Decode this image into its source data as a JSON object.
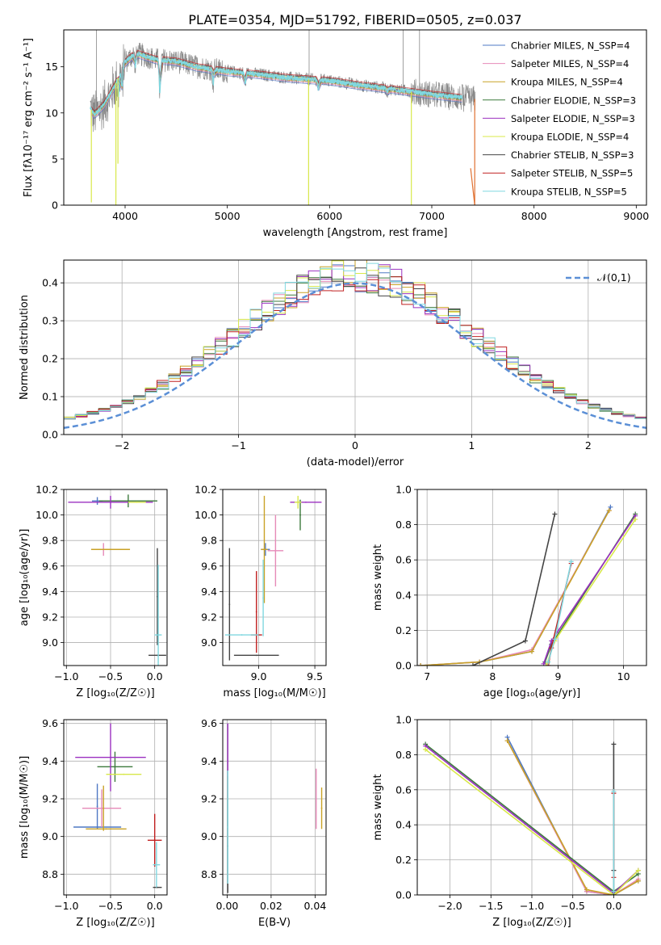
{
  "figure_title": "PLATE=0354, MJD=51792, FIBERID=0505, z=0.037",
  "models": [
    {
      "name": "Chabrier MILES, N_SSP=4",
      "color": "#4f78c4"
    },
    {
      "name": "Salpeter MILES, N_SSP=4",
      "color": "#e68ab8"
    },
    {
      "name": "Kroupa MILES, N_SSP=4",
      "color": "#c9a227"
    },
    {
      "name": "Chabrier ELODIE, N_SSP=3",
      "color": "#3d7a3d"
    },
    {
      "name": "Salpeter ELODIE, N_SSP=3",
      "color": "#9b30c0"
    },
    {
      "name": "Kroupa ELODIE, N_SSP=4",
      "color": "#d8e84a"
    },
    {
      "name": "Chabrier STELIB, N_SSP=3",
      "color": "#444444"
    },
    {
      "name": "Salpeter STELIB, N_SSP=5",
      "color": "#c02020"
    },
    {
      "name": "Kroupa STELIB, N_SSP=5",
      "color": "#80d8e0"
    }
  ],
  "chart_data": [
    {
      "id": "spectrum",
      "type": "line",
      "xlabel": "wavelength [Angstrom, rest frame]",
      "ylabel": "Flux [fλ10⁻¹⁷ erg cm⁻² s⁻¹ A⁻¹]",
      "xlim": [
        3400,
        9100
      ],
      "ylim": [
        0,
        19
      ],
      "xticks": [
        "4000",
        "5000",
        "6000",
        "7000",
        "8000",
        "9000"
      ],
      "yticks": [
        "0",
        "5",
        "10",
        "15"
      ],
      "grid": false,
      "legend_position": "upper-right",
      "data_range_angstrom": [
        3660,
        7430
      ],
      "data_color": "#888888",
      "model_color": "#80d8e0",
      "continuum_knots": [
        [
          3660,
          10.5
        ],
        [
          3700,
          9.8
        ],
        [
          3800,
          11.0
        ],
        [
          3900,
          13.0
        ],
        [
          4000,
          15.5
        ],
        [
          4100,
          16.5
        ],
        [
          4300,
          15.8
        ],
        [
          4500,
          15.6
        ],
        [
          4700,
          15.0
        ],
        [
          5000,
          14.5
        ],
        [
          5300,
          14.2
        ],
        [
          5600,
          13.8
        ],
        [
          6000,
          13.5
        ],
        [
          6300,
          13.0
        ],
        [
          6600,
          12.6
        ],
        [
          7000,
          12.0
        ],
        [
          7400,
          11.5
        ]
      ],
      "dips": [
        [
          3935,
          2.2
        ],
        [
          3970,
          2.0
        ],
        [
          4101,
          1.5
        ],
        [
          4340,
          3.5
        ],
        [
          4861,
          1.5
        ],
        [
          5175,
          1.2
        ],
        [
          5890,
          1.0
        ],
        [
          6563,
          0.5
        ]
      ],
      "spikes": [
        [
          3720,
          19.0
        ],
        [
          5800,
          19.0
        ],
        [
          6720,
          19.0
        ],
        [
          6880,
          19.0
        ]
      ],
      "drop_lines": [
        [
          3670,
          0.3
        ],
        [
          3910,
          0.0
        ],
        [
          3930,
          4.5
        ],
        [
          5795,
          0.0
        ],
        [
          6800,
          0.0
        ],
        [
          7420,
          0.0
        ]
      ],
      "model_fit_end": 7300
    },
    {
      "id": "residuals",
      "type": "histogram",
      "xlabel": "(data-model)/error",
      "ylabel": "Normed distribution",
      "xlim": [
        -2.5,
        2.5
      ],
      "ylim": [
        0,
        0.46
      ],
      "xticks": [
        "−2",
        "−1",
        "0",
        "1",
        "2"
      ],
      "yticks": [
        "0.0",
        "0.1",
        "0.2",
        "0.3",
        "0.4"
      ],
      "grid": true,
      "bin_width": 0.1,
      "legend_position": "upper-right",
      "reference_curve": {
        "label": "𝒩(0,1)",
        "mean": 0,
        "sigma": 1,
        "color": "#5b8fd6"
      }
    },
    {
      "id": "age_vs_Z",
      "type": "errorbar",
      "xlabel": "Z [log₁₀(Z/Z☉)]",
      "ylabel": "age  [log₁₀(age/yr)]",
      "xlim": [
        -1.03,
        0.14
      ],
      "ylim": [
        8.82,
        10.2
      ],
      "xticks": [
        "−1.0",
        "−0.5",
        "0.0"
      ],
      "yticks": [
        "9.0",
        "9.2",
        "9.4",
        "9.6",
        "9.8",
        "10.0",
        "10.2"
      ],
      "grid": true,
      "points": [
        {
          "x": -0.65,
          "y": 10.11,
          "xerr": 0.06,
          "yerr": 0.03,
          "model": 0
        },
        {
          "x": -0.58,
          "y": 9.73,
          "xerr": 0.12,
          "yerr": 0.05,
          "model": 1
        },
        {
          "x": -0.5,
          "y": 9.73,
          "xerr": 0.22,
          "yerr": 0.0,
          "model": 2
        },
        {
          "x": -0.3,
          "y": 10.11,
          "xerr": 0.33,
          "yerr": 0.05,
          "model": 3
        },
        {
          "x": -0.5,
          "y": 10.1,
          "xerr": 0.48,
          "yerr": 0.05,
          "model": 4
        },
        {
          "x": -0.2,
          "y": 10.1,
          "xerr": 0.1,
          "yerr": 0.0,
          "model": 5
        },
        {
          "x": 0.03,
          "y": 8.9,
          "xerr": 0.1,
          "yerr": 0.0,
          "model": 6
        },
        {
          "x": 0.03,
          "y": 9.36,
          "xerr": 0.0,
          "yerr": 0.38,
          "model": 6
        },
        {
          "x": 0.04,
          "y": 9.06,
          "xerr": 0.04,
          "yerr": 0.55,
          "model": 8
        }
      ]
    },
    {
      "id": "age_vs_mass",
      "type": "errorbar",
      "xlabel": "mass [log₁₀(M/M☉)]",
      "ylabel": "",
      "xlim": [
        8.68,
        9.6
      ],
      "ylim": [
        8.82,
        10.2
      ],
      "xticks": [
        "9.0",
        "9.5"
      ],
      "yticks": [
        "9.0",
        "9.2",
        "9.4",
        "9.6",
        "9.8",
        "10.0",
        "10.2"
      ],
      "grid": true,
      "points": [
        {
          "x": 9.06,
          "y": 9.73,
          "xerr": 0.04,
          "yerr": 0.05,
          "model": 0
        },
        {
          "x": 9.15,
          "y": 9.72,
          "xerr": 0.07,
          "yerr": 0.28,
          "model": 1
        },
        {
          "x": 9.05,
          "y": 9.73,
          "xerr": 0.03,
          "yerr": 0.42,
          "model": 2
        },
        {
          "x": 9.37,
          "y": 10.0,
          "xerr": 0.0,
          "yerr": 0.12,
          "model": 3
        },
        {
          "x": 9.42,
          "y": 10.1,
          "xerr": 0.14,
          "yerr": 0.0,
          "model": 4
        },
        {
          "x": 9.35,
          "y": 10.1,
          "xerr": 0.03,
          "yerr": 0.05,
          "model": 5
        },
        {
          "x": 8.74,
          "y": 9.3,
          "xerr": 0.0,
          "yerr": 0.44,
          "model": 6
        },
        {
          "x": 8.98,
          "y": 8.9,
          "xerr": 0.2,
          "yerr": 0.0,
          "model": 6
        },
        {
          "x": 8.98,
          "y": 9.06,
          "xerr": 0.05,
          "yerr": 0.0,
          "model": 7
        },
        {
          "x": 8.98,
          "y": 9.24,
          "xerr": 0.0,
          "yerr": 0.32,
          "model": 7
        },
        {
          "x": 8.85,
          "y": 9.06,
          "xerr": 0.15,
          "yerr": 0.0,
          "model": 8
        },
        {
          "x": 9.04,
          "y": 9.35,
          "xerr": 0.0,
          "yerr": 0.3,
          "model": 8
        }
      ]
    },
    {
      "id": "weight_vs_age",
      "type": "line",
      "xlabel": "age  [log₁₀(age/yr)]",
      "ylabel": "mass weight",
      "xlim": [
        6.85,
        10.35
      ],
      "ylim": [
        0.0,
        1.0
      ],
      "xticks": [
        "7",
        "8",
        "9",
        "10"
      ],
      "yticks": [
        "0.0",
        "0.2",
        "0.4",
        "0.6",
        "0.8",
        "1.0"
      ],
      "grid": true,
      "series": [
        {
          "model": 0,
          "x": [
            6.9,
            7.8,
            8.6,
            9.8
          ],
          "y": [
            0.0,
            0.02,
            0.08,
            0.9
          ]
        },
        {
          "model": 1,
          "x": [
            6.9,
            7.8,
            8.6,
            9.78
          ],
          "y": [
            0.0,
            0.02,
            0.09,
            0.88
          ]
        },
        {
          "model": 2,
          "x": [
            6.9,
            7.8,
            8.6,
            9.78
          ],
          "y": [
            0.0,
            0.02,
            0.08,
            0.88
          ]
        },
        {
          "model": 3,
          "x": [
            8.8,
            8.9,
            10.18
          ],
          "y": [
            0.02,
            0.12,
            0.86
          ]
        },
        {
          "model": 4,
          "x": [
            8.78,
            8.9,
            10.18
          ],
          "y": [
            0.01,
            0.14,
            0.85
          ]
        },
        {
          "model": 5,
          "x": [
            8.82,
            8.95,
            10.18
          ],
          "y": [
            0.0,
            0.14,
            0.83
          ]
        },
        {
          "model": 6,
          "x": [
            7.7,
            8.5,
            8.95
          ],
          "y": [
            0.0,
            0.14,
            0.86
          ]
        },
        {
          "model": 7,
          "x": [
            8.85,
            8.9,
            9.2
          ],
          "y": [
            0.0,
            0.1,
            0.58
          ]
        },
        {
          "model": 8,
          "x": [
            8.85,
            8.95,
            9.2
          ],
          "y": [
            0.02,
            0.15,
            0.59
          ]
        }
      ]
    },
    {
      "id": "mass_vs_Z",
      "type": "errorbar",
      "xlabel": "Z [log₁₀(Z/Z☉)]",
      "ylabel": "mass [log₁₀(M/M☉)]",
      "xlim": [
        -1.03,
        0.14
      ],
      "ylim": [
        8.69,
        9.62
      ],
      "xticks": [
        "−1.0",
        "−0.5",
        "0.0"
      ],
      "yticks": [
        "8.8",
        "9.0",
        "9.2",
        "9.4",
        "9.6"
      ],
      "grid": true,
      "points": [
        {
          "x": -0.65,
          "y": 9.05,
          "xerr": 0.27,
          "yerr": 0.0,
          "model": 0
        },
        {
          "x": -0.65,
          "y": 9.16,
          "xerr": 0.0,
          "yerr": 0.12,
          "model": 0
        },
        {
          "x": -0.6,
          "y": 9.15,
          "xerr": 0.22,
          "yerr": 0.1,
          "model": 1
        },
        {
          "x": -0.55,
          "y": 9.04,
          "xerr": 0.23,
          "yerr": 0.0,
          "model": 2
        },
        {
          "x": -0.58,
          "y": 9.15,
          "xerr": 0.0,
          "yerr": 0.12,
          "model": 2
        },
        {
          "x": -0.45,
          "y": 9.37,
          "xerr": 0.2,
          "yerr": 0.08,
          "model": 3
        },
        {
          "x": -0.5,
          "y": 9.42,
          "xerr": 0.4,
          "yerr": 0.18,
          "model": 4
        },
        {
          "x": -0.35,
          "y": 9.33,
          "xerr": 0.2,
          "yerr": 0.0,
          "model": 5
        },
        {
          "x": 0.03,
          "y": 8.73,
          "xerr": 0.05,
          "yerr": 0.0,
          "model": 6
        },
        {
          "x": 0.0,
          "y": 8.98,
          "xerr": 0.08,
          "yerr": 0.14,
          "model": 7
        },
        {
          "x": 0.02,
          "y": 8.85,
          "xerr": 0.04,
          "yerr": 0.12,
          "model": 8
        }
      ]
    },
    {
      "id": "mass_vs_ebv",
      "type": "errorbar",
      "xlabel": "E(B-V)",
      "ylabel": "",
      "xlim": [
        -0.002,
        0.045
      ],
      "ylim": [
        8.69,
        9.62
      ],
      "xticks": [
        "0.00",
        "0.02",
        "0.04"
      ],
      "yticks": [
        "8.8",
        "9.0",
        "9.2",
        "9.4",
        "9.6"
      ],
      "grid": true,
      "points": [
        {
          "x": 0.0003,
          "y": 9.4,
          "xerr": 0.0,
          "yerr": 0.2,
          "model": 4
        },
        {
          "x": 0.0003,
          "y": 9.2,
          "xerr": 0.0,
          "yerr": 0.12,
          "model": 7
        },
        {
          "x": 0.0003,
          "y": 8.95,
          "xerr": 0.0,
          "yerr": 0.25,
          "model": 6
        },
        {
          "x": 0.0003,
          "y": 9.05,
          "xerr": 0.0,
          "yerr": 0.3,
          "model": 8
        },
        {
          "x": 0.0405,
          "y": 9.2,
          "xerr": 0.0,
          "yerr": 0.16,
          "model": 1
        },
        {
          "x": 0.043,
          "y": 9.15,
          "xerr": 0.0,
          "yerr": 0.11,
          "model": 2
        }
      ]
    },
    {
      "id": "weight_vs_Z",
      "type": "line",
      "xlabel": "Z [log₁₀(Z/Z☉)]",
      "ylabel": "mass weight",
      "xlim": [
        -2.4,
        0.4
      ],
      "ylim": [
        0.0,
        1.0
      ],
      "xticks": [
        "−2.0",
        "−1.5",
        "−1.0",
        "−0.5",
        "0.0"
      ],
      "yticks": [
        "0.0",
        "0.2",
        "0.4",
        "0.6",
        "0.8",
        "1.0"
      ],
      "grid": true,
      "series": [
        {
          "model": 0,
          "x": [
            -1.3,
            -0.33,
            0.0,
            0.3
          ],
          "y": [
            0.9,
            0.02,
            0.0,
            0.08
          ]
        },
        {
          "model": 1,
          "x": [
            -1.3,
            -0.33,
            0.0,
            0.3
          ],
          "y": [
            0.88,
            0.02,
            0.0,
            0.09
          ]
        },
        {
          "model": 2,
          "x": [
            -1.3,
            -0.33,
            0.0,
            0.3
          ],
          "y": [
            0.88,
            0.03,
            0.0,
            0.08
          ]
        },
        {
          "model": 3,
          "x": [
            -2.3,
            0.0,
            0.3
          ],
          "y": [
            0.86,
            0.02,
            0.12
          ]
        },
        {
          "model": 4,
          "x": [
            -2.3,
            0.0,
            0.3
          ],
          "y": [
            0.85,
            0.01,
            0.14
          ]
        },
        {
          "model": 5,
          "x": [
            -2.3,
            0.0,
            0.3
          ],
          "y": [
            0.83,
            0.0,
            0.14
          ]
        },
        {
          "model": 6,
          "x": [
            0.0,
            0.0,
            0.0
          ],
          "y": [
            0.0,
            0.14,
            0.86
          ]
        },
        {
          "model": 7,
          "x": [
            0.0,
            0.0
          ],
          "y": [
            0.1,
            0.58
          ]
        },
        {
          "model": 8,
          "x": [
            0.0,
            0.0
          ],
          "y": [
            0.02,
            0.59
          ]
        }
      ]
    }
  ]
}
